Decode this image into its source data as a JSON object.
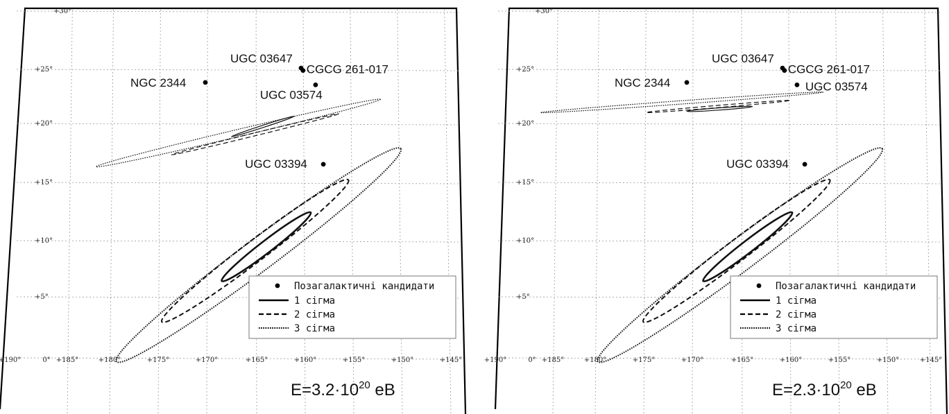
{
  "chart_data": [
    {
      "type": "scatter",
      "energy": {
        "prefix": "E=3.2·10",
        "exp": "20",
        "unit": " eB"
      },
      "x_ticks": [
        "+190°",
        "0°",
        "+185°",
        "+180°",
        "+175°",
        "+170°",
        "+165°",
        "+160°",
        "+155°",
        "+150°",
        "+145°"
      ],
      "y_ticks": [
        "+30°",
        "+25°",
        "+20°",
        "+15°",
        "+10°",
        "+5°"
      ],
      "points": [
        {
          "name": "UGC 03647",
          "x": 160.2,
          "y": 24.2
        },
        {
          "name": "CGCG 261-017",
          "x": 160.0,
          "y": 24.0
        },
        {
          "name": "NGC 2344",
          "x": 170.1,
          "y": 23.0
        },
        {
          "name": "UGC 03574",
          "x": 158.7,
          "y": 22.8
        },
        {
          "name": "UGC 03394",
          "x": 157.9,
          "y": 16.2
        }
      ],
      "ellipses": [
        {
          "style": "1 sigma",
          "x1": 168.4,
          "y1": 6.5,
          "x2": 159.2,
          "y2": 12.2,
          "halfwidth": 0.9
        },
        {
          "style": "2 sigma",
          "x1": 174.6,
          "y1": 3.1,
          "x2": 155.3,
          "y2": 14.9,
          "halfwidth": 1.6
        },
        {
          "style": "3 sigma",
          "x1": 179.3,
          "y1": -0.2,
          "x2": 149.9,
          "y2": 17.5,
          "halfwidth": 2.4
        },
        {
          "style": "1 sigma",
          "x1": 167.4,
          "y1": 18.5,
          "x2": 160.9,
          "y2": 20.2,
          "halfwidth": 0.12
        },
        {
          "style": "2 sigma",
          "x1": 173.6,
          "y1": 17.0,
          "x2": 156.3,
          "y2": 20.4,
          "halfwidth": 0.22
        },
        {
          "style": "3 sigma",
          "x1": 181.4,
          "y1": 16.0,
          "x2": 152.0,
          "y2": 21.6,
          "halfwidth": 0.55
        }
      ],
      "legend": {
        "points": "Позагалактичні кандидати",
        "s1": "1 сігма",
        "s2": "2 сігма",
        "s3": "3 сігма",
        "placement": "lower-right"
      },
      "grid": true
    },
    {
      "type": "scatter",
      "energy": {
        "prefix": "E=2.3·10",
        "exp": "20",
        "unit": " eB"
      },
      "x_ticks": [
        "+190°",
        "0°",
        "+185°",
        "+180°",
        "+175°",
        "+170°",
        "+165°",
        "+160°",
        "+155°",
        "+150°",
        "+145°"
      ],
      "y_ticks": [
        "+30°",
        "+25°",
        "+20°",
        "+15°",
        "+10°",
        "+5°"
      ],
      "points": [
        {
          "name": "UGC 03647",
          "x": 160.2,
          "y": 24.2
        },
        {
          "name": "CGCG 261-017",
          "x": 160.0,
          "y": 24.0
        },
        {
          "name": "NGC 2344",
          "x": 170.1,
          "y": 23.0
        },
        {
          "name": "UGC 03574",
          "x": 158.7,
          "y": 22.8
        },
        {
          "name": "UGC 03394",
          "x": 157.9,
          "y": 16.2
        }
      ],
      "ellipses": [
        {
          "style": "1 sigma",
          "x1": 168.4,
          "y1": 6.5,
          "x2": 159.2,
          "y2": 12.2,
          "halfwidth": 0.9
        },
        {
          "style": "2 sigma",
          "x1": 174.6,
          "y1": 3.1,
          "x2": 155.3,
          "y2": 14.9,
          "halfwidth": 1.6
        },
        {
          "style": "3 sigma",
          "x1": 179.3,
          "y1": -0.2,
          "x2": 149.9,
          "y2": 17.5,
          "halfwidth": 2.4
        },
        {
          "style": "1 sigma",
          "x1": 170.1,
          "y1": 20.6,
          "x2": 163.3,
          "y2": 21.0,
          "halfwidth": 0.1
        },
        {
          "style": "2 sigma",
          "x1": 174.3,
          "y1": 20.5,
          "x2": 159.5,
          "y2": 21.5,
          "halfwidth": 0.15
        },
        {
          "style": "3 sigma",
          "x1": 185.2,
          "y1": 20.5,
          "x2": 156.0,
          "y2": 22.2,
          "halfwidth": 0.25
        }
      ],
      "legend": {
        "points": "Позагалактичні кандидати",
        "s1": "1 сігма",
        "s2": "2 сігма",
        "s3": "3 сігма",
        "placement": "lower-right"
      },
      "grid": true
    }
  ]
}
